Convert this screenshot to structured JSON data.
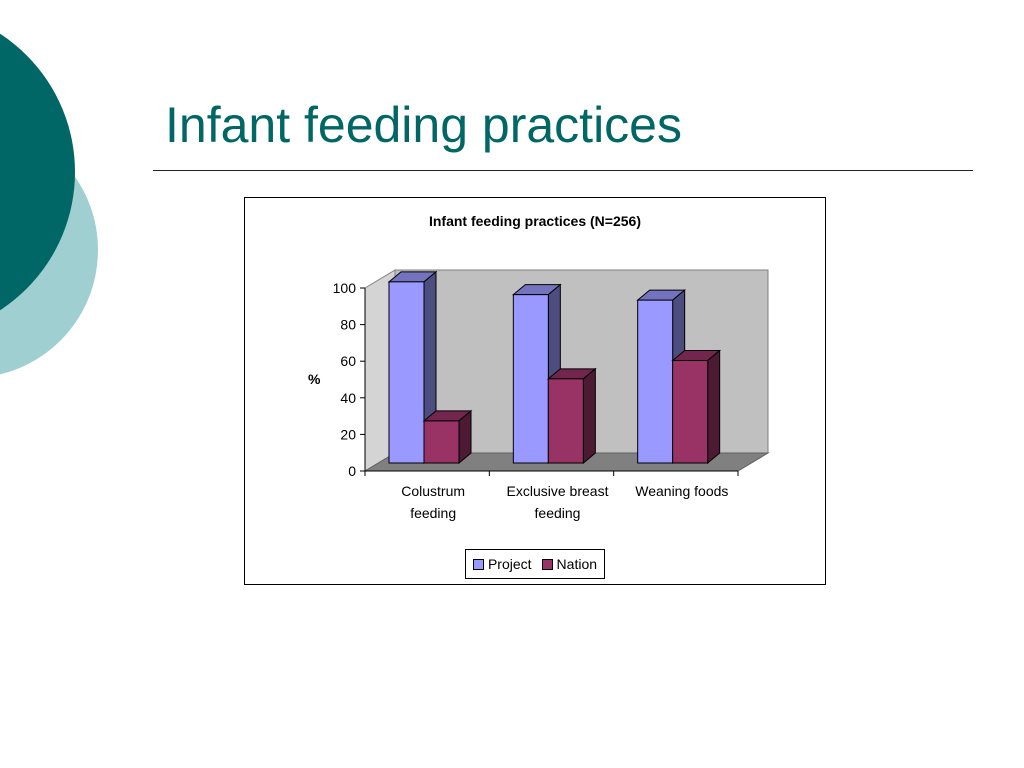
{
  "slide": {
    "title": "Infant feeding practices"
  },
  "colors": {
    "accent_dark": "#006666",
    "accent_light": "#9fcfd1"
  },
  "chart_data": {
    "type": "bar",
    "title": "Infant feeding practices (N=256)",
    "ylabel": "%",
    "xlabel": "",
    "categories": [
      [
        "Colustrum",
        "feeding"
      ],
      [
        "Exclusive breast",
        "feeding"
      ],
      [
        "Weaning foods"
      ]
    ],
    "series": [
      {
        "name": "Project",
        "values": [
          99,
          92,
          89
        ],
        "color": "#9999ff"
      },
      {
        "name": "Nation",
        "values": [
          23,
          46,
          56
        ],
        "color": "#993366"
      }
    ],
    "ylim": [
      0,
      100
    ],
    "yticks": [
      0,
      20,
      40,
      60,
      80,
      100
    ],
    "legend_position": "bottom",
    "gridlines": false,
    "style": "3d-column"
  }
}
